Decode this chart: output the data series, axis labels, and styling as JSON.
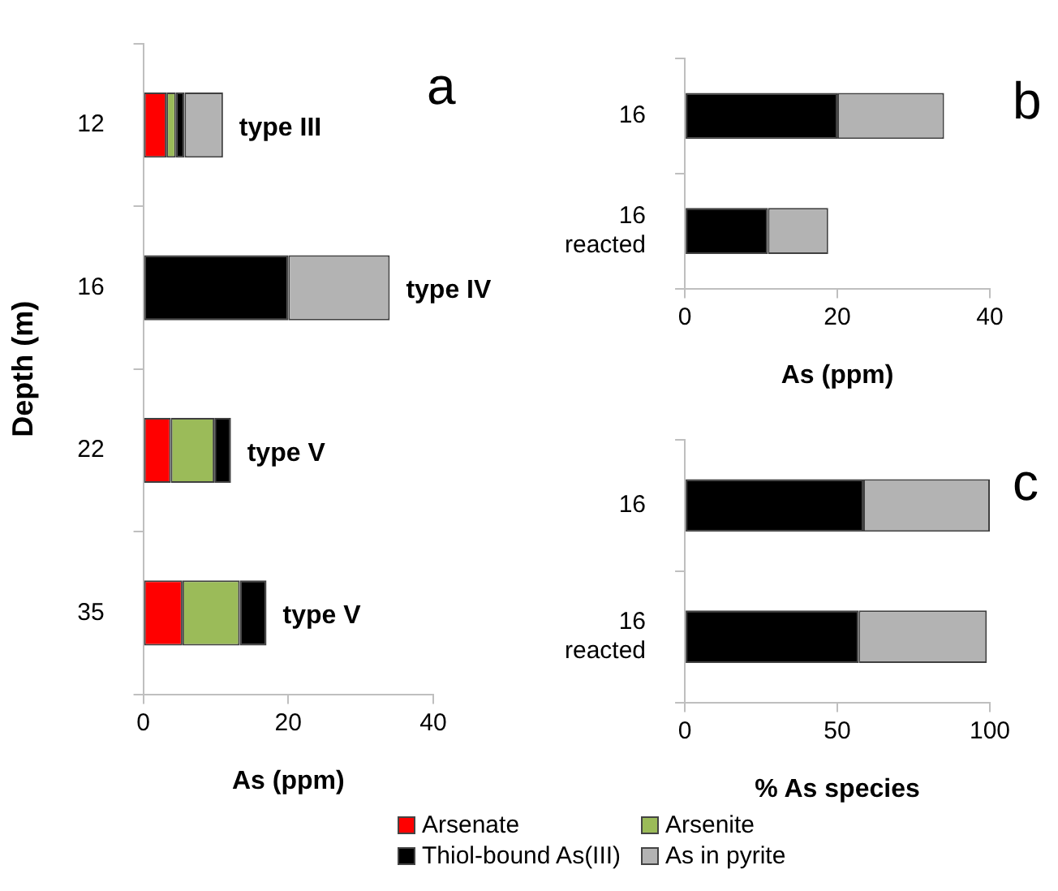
{
  "chart_data": [
    {
      "type": "bar",
      "orientation": "horizontal",
      "stacked": true,
      "xlabel": "As (ppm)",
      "ylabel": "Depth (m)",
      "categories": [
        "12",
        "16",
        "22",
        "35"
      ],
      "xlim": [
        0,
        40
      ],
      "xticks": [
        0,
        20,
        40
      ],
      "legend": "bottom",
      "series": [
        {
          "name": "Arsenate",
          "color": "#ff0000",
          "values": [
            3.2,
            0,
            3.8,
            5.4
          ]
        },
        {
          "name": "Arsenite",
          "color": "#9bbb59",
          "values": [
            1.3,
            0,
            6,
            7.9
          ]
        },
        {
          "name": "Thiol-bound As(III)",
          "color": "#000000",
          "values": [
            1.2,
            20,
            2.3,
            3.7
          ]
        },
        {
          "name": "As in pyrite",
          "color": "#b3b3b3",
          "values": [
            5.3,
            14,
            0,
            0
          ]
        }
      ],
      "annotations": [
        "a",
        {
          "text": "type III",
          "x": 11,
          "y": "12"
        },
        {
          "text": "type IV",
          "x": 34,
          "y": "16"
        },
        {
          "text": "type V",
          "x": 12.1,
          "y": "22"
        },
        {
          "text": "type V",
          "x": 17,
          "y": "35"
        }
      ]
    },
    {
      "type": "bar",
      "orientation": "horizontal",
      "stacked": true,
      "xlabel": "As (ppm)",
      "categories": [
        "16",
        "16\nreacted"
      ],
      "xlim": [
        0,
        40
      ],
      "xticks": [
        0,
        20,
        40
      ],
      "series": [
        {
          "color": "#000000",
          "values": [
            20,
            10.9
          ]
        },
        {
          "color": "#b3b3b3",
          "values": [
            14,
            7.9
          ]
        }
      ],
      "annotations": [
        "b"
      ]
    },
    {
      "type": "bar",
      "orientation": "horizontal",
      "stacked": true,
      "xlabel": "% As species",
      "categories": [
        "16",
        "16\nreacted"
      ],
      "xlim": [
        0,
        100
      ],
      "xticks": [
        0,
        50,
        100
      ],
      "series": [
        {
          "color": "#000000",
          "values": [
            58.5,
            57
          ]
        },
        {
          "color": "#b3b3b3",
          "values": [
            41.5,
            42
          ]
        }
      ],
      "annotations": [
        "c"
      ]
    }
  ]
}
